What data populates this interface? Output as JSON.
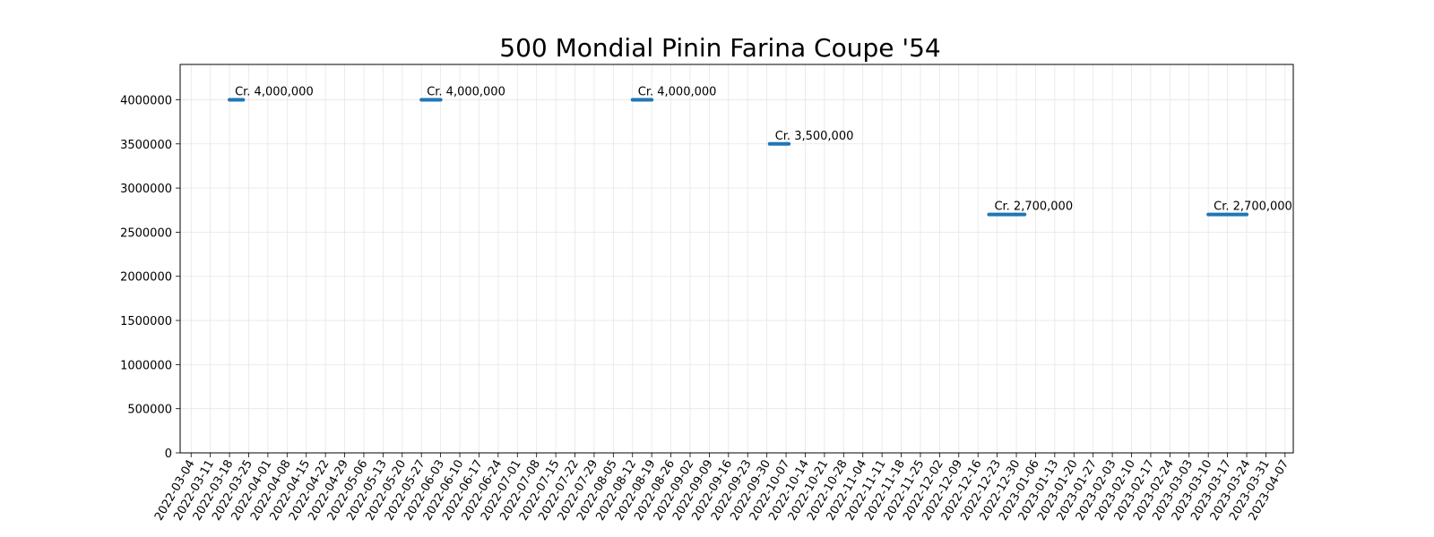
{
  "chart_data": {
    "type": "line",
    "title": "500 Mondial Pinin Farina Coupe '54",
    "xlabel": "",
    "ylabel": "",
    "grid": true,
    "ylim": [
      0,
      4400000
    ],
    "y_ticks": [
      0,
      500000,
      1000000,
      1500000,
      2000000,
      2500000,
      3000000,
      3500000,
      4000000
    ],
    "x_ticks": [
      "2022-03-04",
      "2022-03-11",
      "2022-03-18",
      "2022-03-25",
      "2022-04-01",
      "2022-04-08",
      "2022-04-15",
      "2022-04-22",
      "2022-04-29",
      "2022-05-06",
      "2022-05-13",
      "2022-05-20",
      "2022-05-27",
      "2022-06-03",
      "2022-06-10",
      "2022-06-17",
      "2022-06-24",
      "2022-07-01",
      "2022-07-08",
      "2022-07-15",
      "2022-07-22",
      "2022-07-29",
      "2022-08-05",
      "2022-08-12",
      "2022-08-19",
      "2022-08-26",
      "2022-09-02",
      "2022-09-09",
      "2022-09-16",
      "2022-09-23",
      "2022-09-30",
      "2022-10-07",
      "2022-10-14",
      "2022-10-21",
      "2022-10-28",
      "2022-11-04",
      "2022-11-11",
      "2022-11-18",
      "2022-11-25",
      "2022-12-02",
      "2022-12-09",
      "2022-12-16",
      "2022-12-23",
      "2022-12-30",
      "2023-01-06",
      "2023-01-13",
      "2023-01-20",
      "2023-01-27",
      "2023-02-03",
      "2023-02-10",
      "2023-02-17",
      "2023-02-24",
      "2023-03-03",
      "2023-03-10",
      "2023-03-17",
      "2023-03-24",
      "2023-03-31",
      "2023-04-07"
    ],
    "xlim": [
      "2022-02-28",
      "2023-04-10"
    ],
    "series": [
      {
        "color": "#1f77b4",
        "segments": [
          {
            "x": [
              "2022-03-18",
              "2022-03-23"
            ],
            "y": 4000000,
            "label": "Cr. 4,000,000"
          },
          {
            "x": [
              "2022-05-27",
              "2022-06-03"
            ],
            "y": 4000000,
            "label": "Cr. 4,000,000"
          },
          {
            "x": [
              "2022-08-12",
              "2022-08-19"
            ],
            "y": 4000000,
            "label": "Cr. 4,000,000"
          },
          {
            "x": [
              "2022-10-01",
              "2022-10-08"
            ],
            "y": 3500000,
            "label": "Cr. 3,500,000"
          },
          {
            "x": [
              "2022-12-20",
              "2023-01-02"
            ],
            "y": 2700000,
            "label": "Cr. 2,700,000"
          },
          {
            "x": [
              "2023-03-10",
              "2023-03-24"
            ],
            "y": 2700000,
            "label": "Cr. 2,700,000"
          }
        ]
      }
    ]
  }
}
